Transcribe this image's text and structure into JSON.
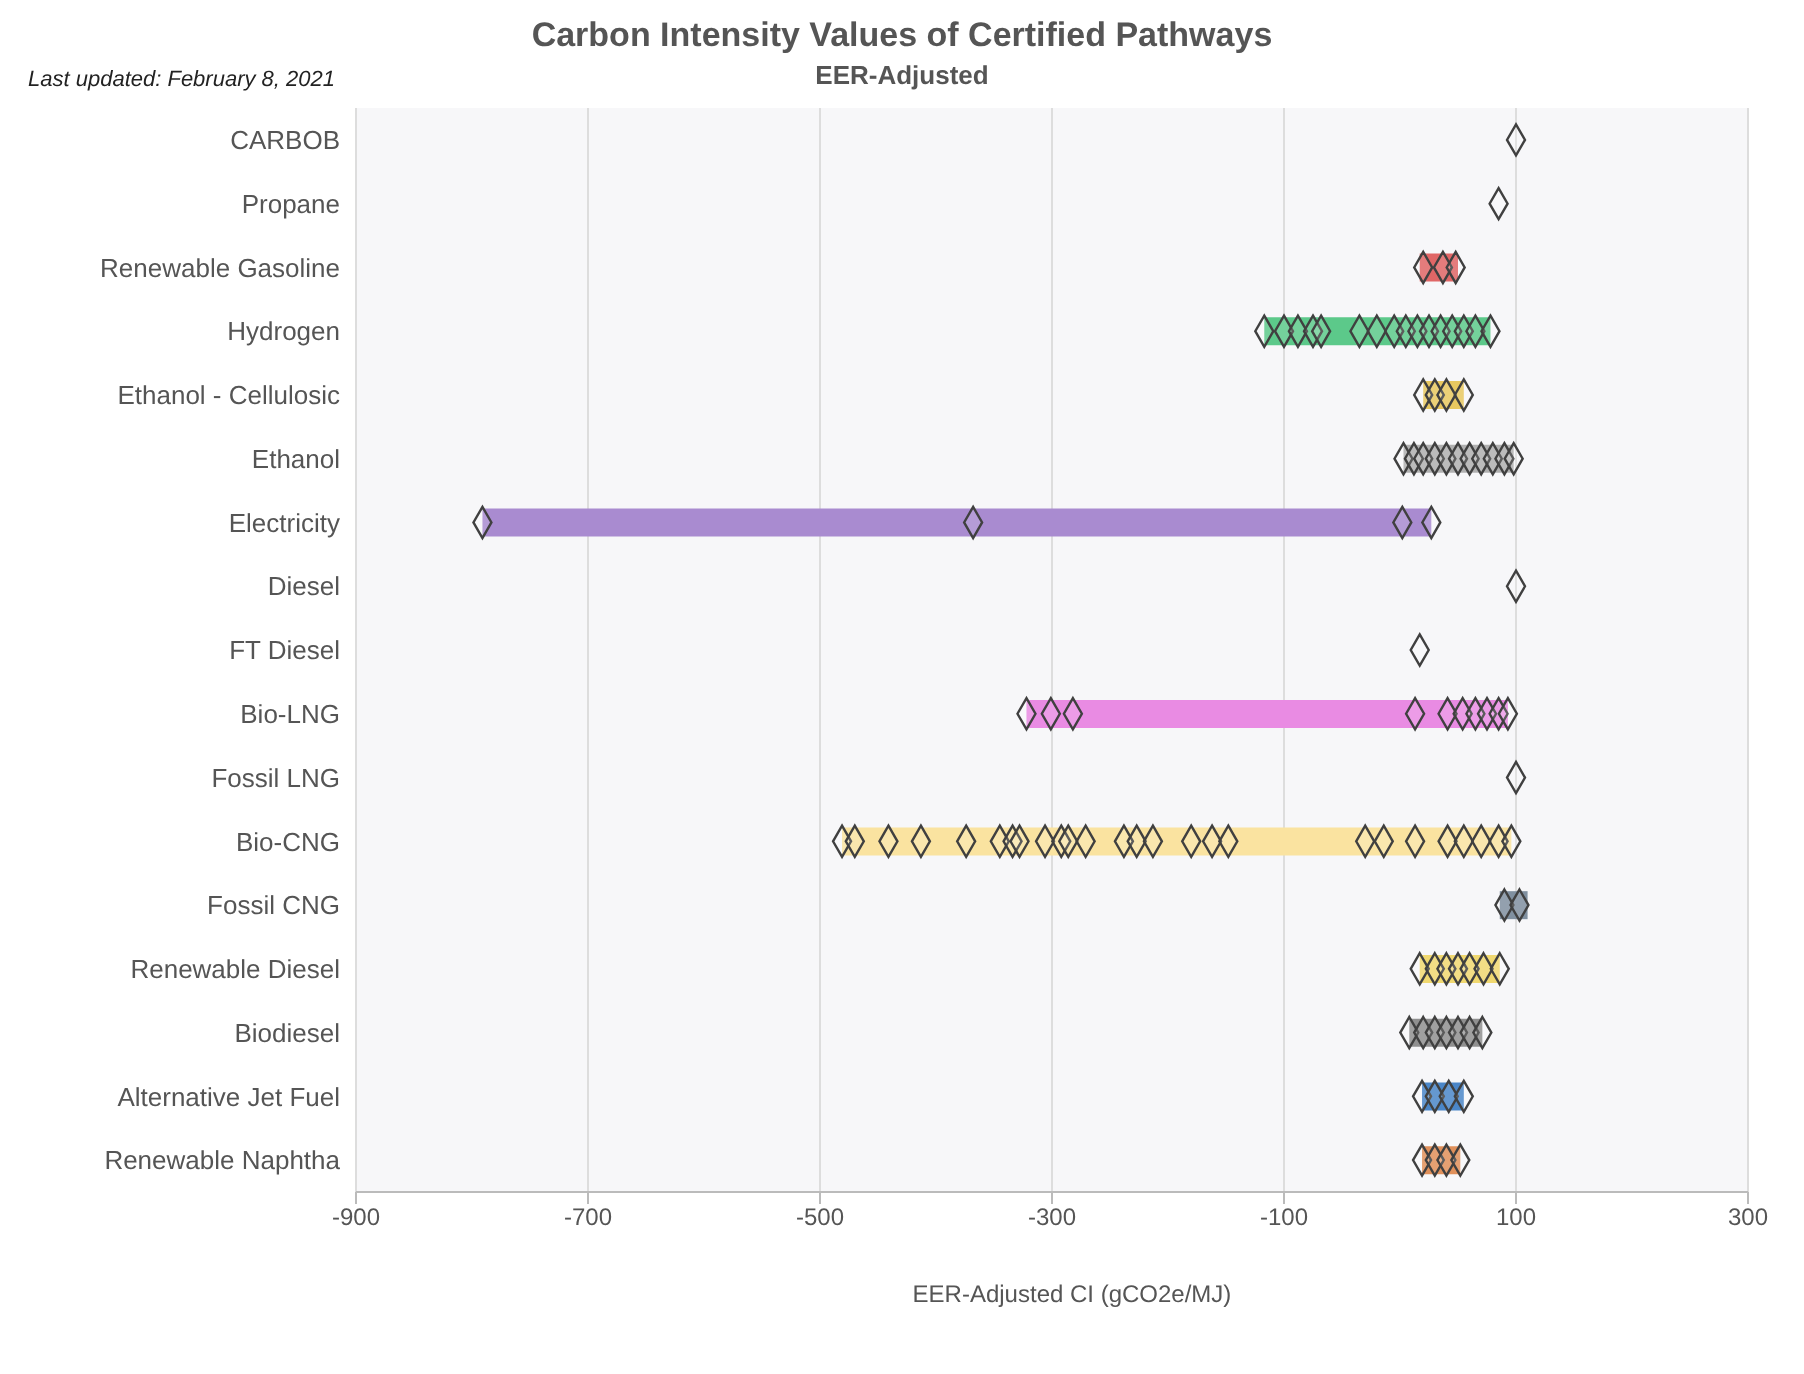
{
  "chart_data": {
    "type": "bar",
    "orientation": "horizontal",
    "title": "Carbon Intensity Values of Certified Pathways",
    "subtitle": "EER-Adjusted",
    "xlabel": "EER-Adjusted CI (gCO2e/MJ)",
    "annotations": [
      "Last updated: February 8, 2021"
    ],
    "categories": [
      "CARBOB",
      "Propane",
      "Renewable Gasoline",
      "Hydrogen",
      "Ethanol - Cellulosic",
      "Ethanol",
      "Electricity",
      "Diesel",
      "FT Diesel",
      "Bio-LNG",
      "Fossil LNG",
      "Bio-CNG",
      "Fossil CNG",
      "Renewable Diesel",
      "Biodiesel",
      "Alternative Jet Fuel",
      "Renewable Naphtha"
    ],
    "xlim": [
      -900,
      300
    ],
    "xticks": [
      -900,
      -700,
      -500,
      -300,
      -100,
      100,
      300
    ],
    "grid": "x",
    "legend": false,
    "series": [
      {
        "base": [
          null,
          null,
          17,
          -117,
          20,
          3,
          -791,
          null,
          null,
          -322,
          null,
          -481,
          86,
          17,
          8,
          19,
          19
        ],
        "values": [
          null,
          null,
          33,
          195,
          35,
          95,
          818,
          null,
          null,
          415,
          null,
          577,
          24,
          69,
          63,
          36,
          33
        ],
        "colors": [
          "#cccccc",
          "#cccccc",
          "#e06666",
          "#5cc98a",
          "#e8c860",
          "#b0b0b0",
          "#a98bd0",
          "#cccccc",
          "#cccccc",
          "#e98be3",
          "#4aa090",
          "#fae3a0",
          "#8090a0",
          "#f0d870",
          "#909090",
          "#4a86c8",
          "#e0905a"
        ]
      },
      {
        "type": "scatter",
        "marker": "diamond",
        "color": "#404040",
        "x": [
          "CARBOB",
          "Propane",
          "Renewable Gasoline",
          "Renewable Gasoline",
          "Renewable Gasoline",
          "Hydrogen",
          "Hydrogen",
          "Hydrogen",
          "Hydrogen",
          "Hydrogen",
          "Hydrogen",
          "Hydrogen",
          "Hydrogen",
          "Hydrogen",
          "Hydrogen",
          "Hydrogen",
          "Hydrogen",
          "Hydrogen",
          "Hydrogen",
          "Hydrogen",
          "Hydrogen",
          "Ethanol - Cellulosic",
          "Ethanol - Cellulosic",
          "Ethanol - Cellulosic",
          "Ethanol - Cellulosic",
          "Ethanol",
          "Ethanol",
          "Ethanol",
          "Ethanol",
          "Ethanol",
          "Ethanol",
          "Ethanol",
          "Ethanol",
          "Ethanol",
          "Ethanol",
          "Ethanol",
          "Electricity",
          "Electricity",
          "Electricity",
          "Electricity",
          "Diesel",
          "FT Diesel",
          "Bio-LNG",
          "Bio-LNG",
          "Bio-LNG",
          "Bio-LNG",
          "Bio-LNG",
          "Bio-LNG",
          "Bio-LNG",
          "Bio-LNG",
          "Bio-LNG",
          "Bio-LNG",
          "Fossil LNG",
          "Bio-CNG",
          "Bio-CNG",
          "Bio-CNG",
          "Bio-CNG",
          "Bio-CNG",
          "Bio-CNG",
          "Bio-CNG",
          "Bio-CNG",
          "Bio-CNG",
          "Bio-CNG",
          "Bio-CNG",
          "Bio-CNG",
          "Bio-CNG",
          "Bio-CNG",
          "Bio-CNG",
          "Bio-CNG",
          "Bio-CNG",
          "Bio-CNG",
          "Bio-CNG",
          "Bio-CNG",
          "Bio-CNG",
          "Bio-CNG",
          "Bio-CNG",
          "Bio-CNG",
          "Bio-CNG",
          "Bio-CNG",
          "Fossil CNG",
          "Fossil CNG",
          "Renewable Diesel",
          "Renewable Diesel",
          "Renewable Diesel",
          "Renewable Diesel",
          "Renewable Diesel",
          "Renewable Diesel",
          "Renewable Diesel",
          "Biodiesel",
          "Biodiesel",
          "Biodiesel",
          "Biodiesel",
          "Biodiesel",
          "Biodiesel",
          "Biodiesel",
          "Alternative Jet Fuel",
          "Alternative Jet Fuel",
          "Alternative Jet Fuel",
          "Alternative Jet Fuel",
          "Renewable Naphtha",
          "Renewable Naphtha",
          "Renewable Naphtha",
          "Renewable Naphtha"
        ],
        "values": [
          100,
          85,
          20,
          37,
          48,
          -117,
          -100,
          -88,
          -75,
          -68,
          -35,
          -20,
          -5,
          5,
          15,
          25,
          35,
          45,
          55,
          65,
          78,
          20,
          30,
          40,
          55,
          3,
          12,
          20,
          30,
          40,
          50,
          60,
          70,
          80,
          90,
          98,
          -791,
          -368,
          2,
          27,
          100,
          17,
          -322,
          -301,
          -282,
          13,
          41,
          54,
          65,
          75,
          85,
          93,
          100,
          -481,
          -470,
          -441,
          -413,
          -374,
          -345,
          -334,
          -328,
          -306,
          -292,
          -286,
          -271,
          -238,
          -227,
          -213,
          -180,
          -162,
          -148,
          -30,
          -14,
          13,
          41,
          55,
          70,
          85,
          96,
          90,
          103,
          17,
          30,
          40,
          50,
          60,
          72,
          86,
          8,
          20,
          30,
          40,
          50,
          60,
          71,
          19,
          30,
          42,
          55,
          19,
          30,
          40,
          52
        ]
      }
    ]
  }
}
